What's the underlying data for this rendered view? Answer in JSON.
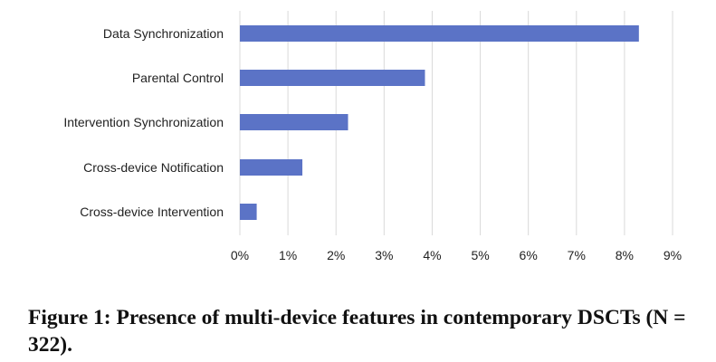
{
  "chart_data": {
    "type": "bar",
    "orientation": "horizontal",
    "categories": [
      "Data Synchronization",
      "Parental Control",
      "Intervention Synchronization",
      "Cross-device Notification",
      "Cross-device Intervention"
    ],
    "values": [
      8.3,
      3.85,
      2.25,
      1.3,
      0.35
    ],
    "xlim": [
      0,
      9
    ],
    "xticks": [
      "0%",
      "1%",
      "2%",
      "3%",
      "4%",
      "5%",
      "6%",
      "7%",
      "8%",
      "9%"
    ],
    "grid": "vertical",
    "bar_color": "#5b73c6",
    "grid_color": "#d9d9d9"
  },
  "figure": {
    "caption": "Figure 1: Presence of multi-device features in contemporary DSCTs (N = 322)."
  }
}
